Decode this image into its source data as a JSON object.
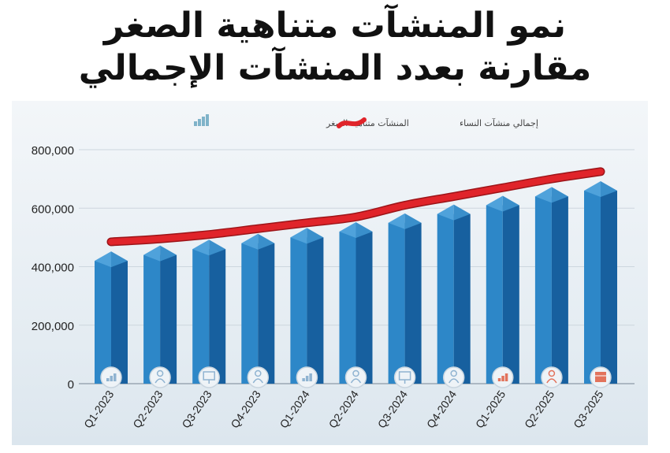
{
  "title_line1": "نمو المنشآت متناهية الصغر",
  "title_line2": "مقارنة بعدد المنشآت الإجمالي",
  "chart_data": {
    "type": "bar",
    "title": "نمو المنشآت متناهية الصغر مقارنة بعدد المنشآت الإجمالي",
    "categories": [
      "Q1-2023",
      "Q2-2023",
      "Q3-2023",
      "Q4-2023",
      "Q1-2024",
      "Q2-2024",
      "Q3-2024",
      "Q4-2024",
      "Q1-2025",
      "Q2-2025",
      "Q3-2025"
    ],
    "series": [
      {
        "name": "المنشآت متناهية الصغر",
        "type": "bar",
        "color": "#1f74b8",
        "values": [
          420000,
          440000,
          460000,
          480000,
          500000,
          520000,
          550000,
          580000,
          610000,
          640000,
          660000
        ]
      },
      {
        "name": "إجمالي منشآت النساء",
        "type": "line",
        "color": "#e0242a",
        "values": [
          485000,
          495000,
          510000,
          530000,
          550000,
          570000,
          610000,
          640000,
          670000,
          700000,
          725000
        ]
      }
    ],
    "yticks": [
      "0",
      "200,000",
      "400,000",
      "600,000",
      "800,000"
    ],
    "ylim": [
      0,
      800000
    ],
    "grid": true,
    "legend": "top-center",
    "bar_icons": [
      "chart-icon",
      "person-icon",
      "board-icon",
      "person-icon",
      "chart-icon",
      "person-icon",
      "board-icon",
      "person-icon",
      "chart-icon",
      "person-icon",
      "shop-icon"
    ],
    "icon_colors": [
      "#8fb3d1",
      "#8fb3d1",
      "#8fb3d1",
      "#8fb3d1",
      "#8fb3d1",
      "#8fb3d1",
      "#8fb3d1",
      "#8fb3d1",
      "#e2735c",
      "#e2735c",
      "#e2735c"
    ]
  }
}
